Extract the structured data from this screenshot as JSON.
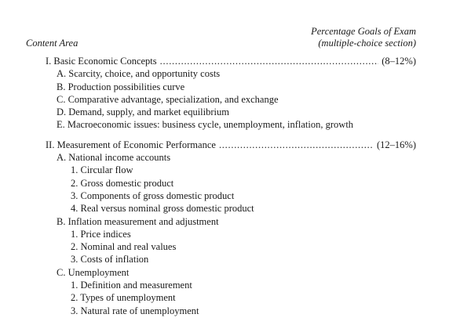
{
  "header": {
    "content_area": "Content Area",
    "goals_line1": "Percentage Goals of Exam",
    "goals_line2": "(multiple-choice section)"
  },
  "sections": [
    {
      "label": "I. Basic Economic Concepts",
      "percent": "(8–12%)",
      "topics": [
        {
          "label": "A. Scarcity, choice, and opportunity costs",
          "subtopics": []
        },
        {
          "label": "B. Production possibilities curve",
          "subtopics": []
        },
        {
          "label": "C. Comparative advantage, specialization, and exchange",
          "subtopics": []
        },
        {
          "label": "D. Demand, supply, and market equilibrium",
          "subtopics": []
        },
        {
          "label": "E. Macroeconomic issues: business cycle, unemployment, inflation, growth",
          "subtopics": []
        }
      ]
    },
    {
      "label": "II. Measurement of Economic Performance",
      "percent": "(12–16%)",
      "topics": [
        {
          "label": "A. National income accounts",
          "subtopics": [
            "1. Circular flow",
            "2. Gross domestic product",
            "3. Components of gross domestic product",
            "4. Real versus nominal gross domestic product"
          ]
        },
        {
          "label": "B. Inflation measurement and adjustment",
          "subtopics": [
            "1. Price indices",
            "2. Nominal and real values",
            "3. Costs of inflation"
          ]
        },
        {
          "label": "C. Unemployment",
          "subtopics": [
            "1. Definition and measurement",
            "2. Types of unemployment",
            "3. Natural rate of unemployment"
          ]
        }
      ]
    }
  ]
}
